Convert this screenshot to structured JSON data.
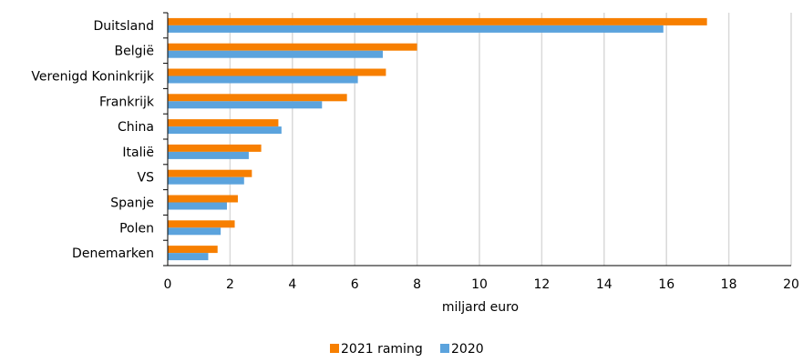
{
  "chart_data": {
    "type": "bar",
    "orientation": "horizontal",
    "categories": [
      "Duitsland",
      "België",
      "Verenigd Koninkrijk",
      "Frankrijk",
      "China",
      "Italië",
      "VS",
      "Spanje",
      "Polen",
      "Denemarken"
    ],
    "series": [
      {
        "name": "2021 raming",
        "color": "#f77f00",
        "values": [
          17.3,
          8.0,
          7.0,
          5.75,
          3.55,
          3.0,
          2.7,
          2.25,
          2.15,
          1.6
        ]
      },
      {
        "name": "2020",
        "color": "#5ba3dd",
        "values": [
          15.9,
          6.9,
          6.1,
          4.95,
          3.65,
          2.6,
          2.45,
          1.9,
          1.7,
          1.3
        ]
      }
    ],
    "xlabel": "miljard euro",
    "xlim": [
      0,
      20
    ],
    "xticks": [
      0,
      2,
      4,
      6,
      8,
      10,
      12,
      14,
      16,
      18,
      20
    ],
    "grid": "vertical",
    "gridColor": "#d9d9d9",
    "legend_position": "bottom"
  }
}
